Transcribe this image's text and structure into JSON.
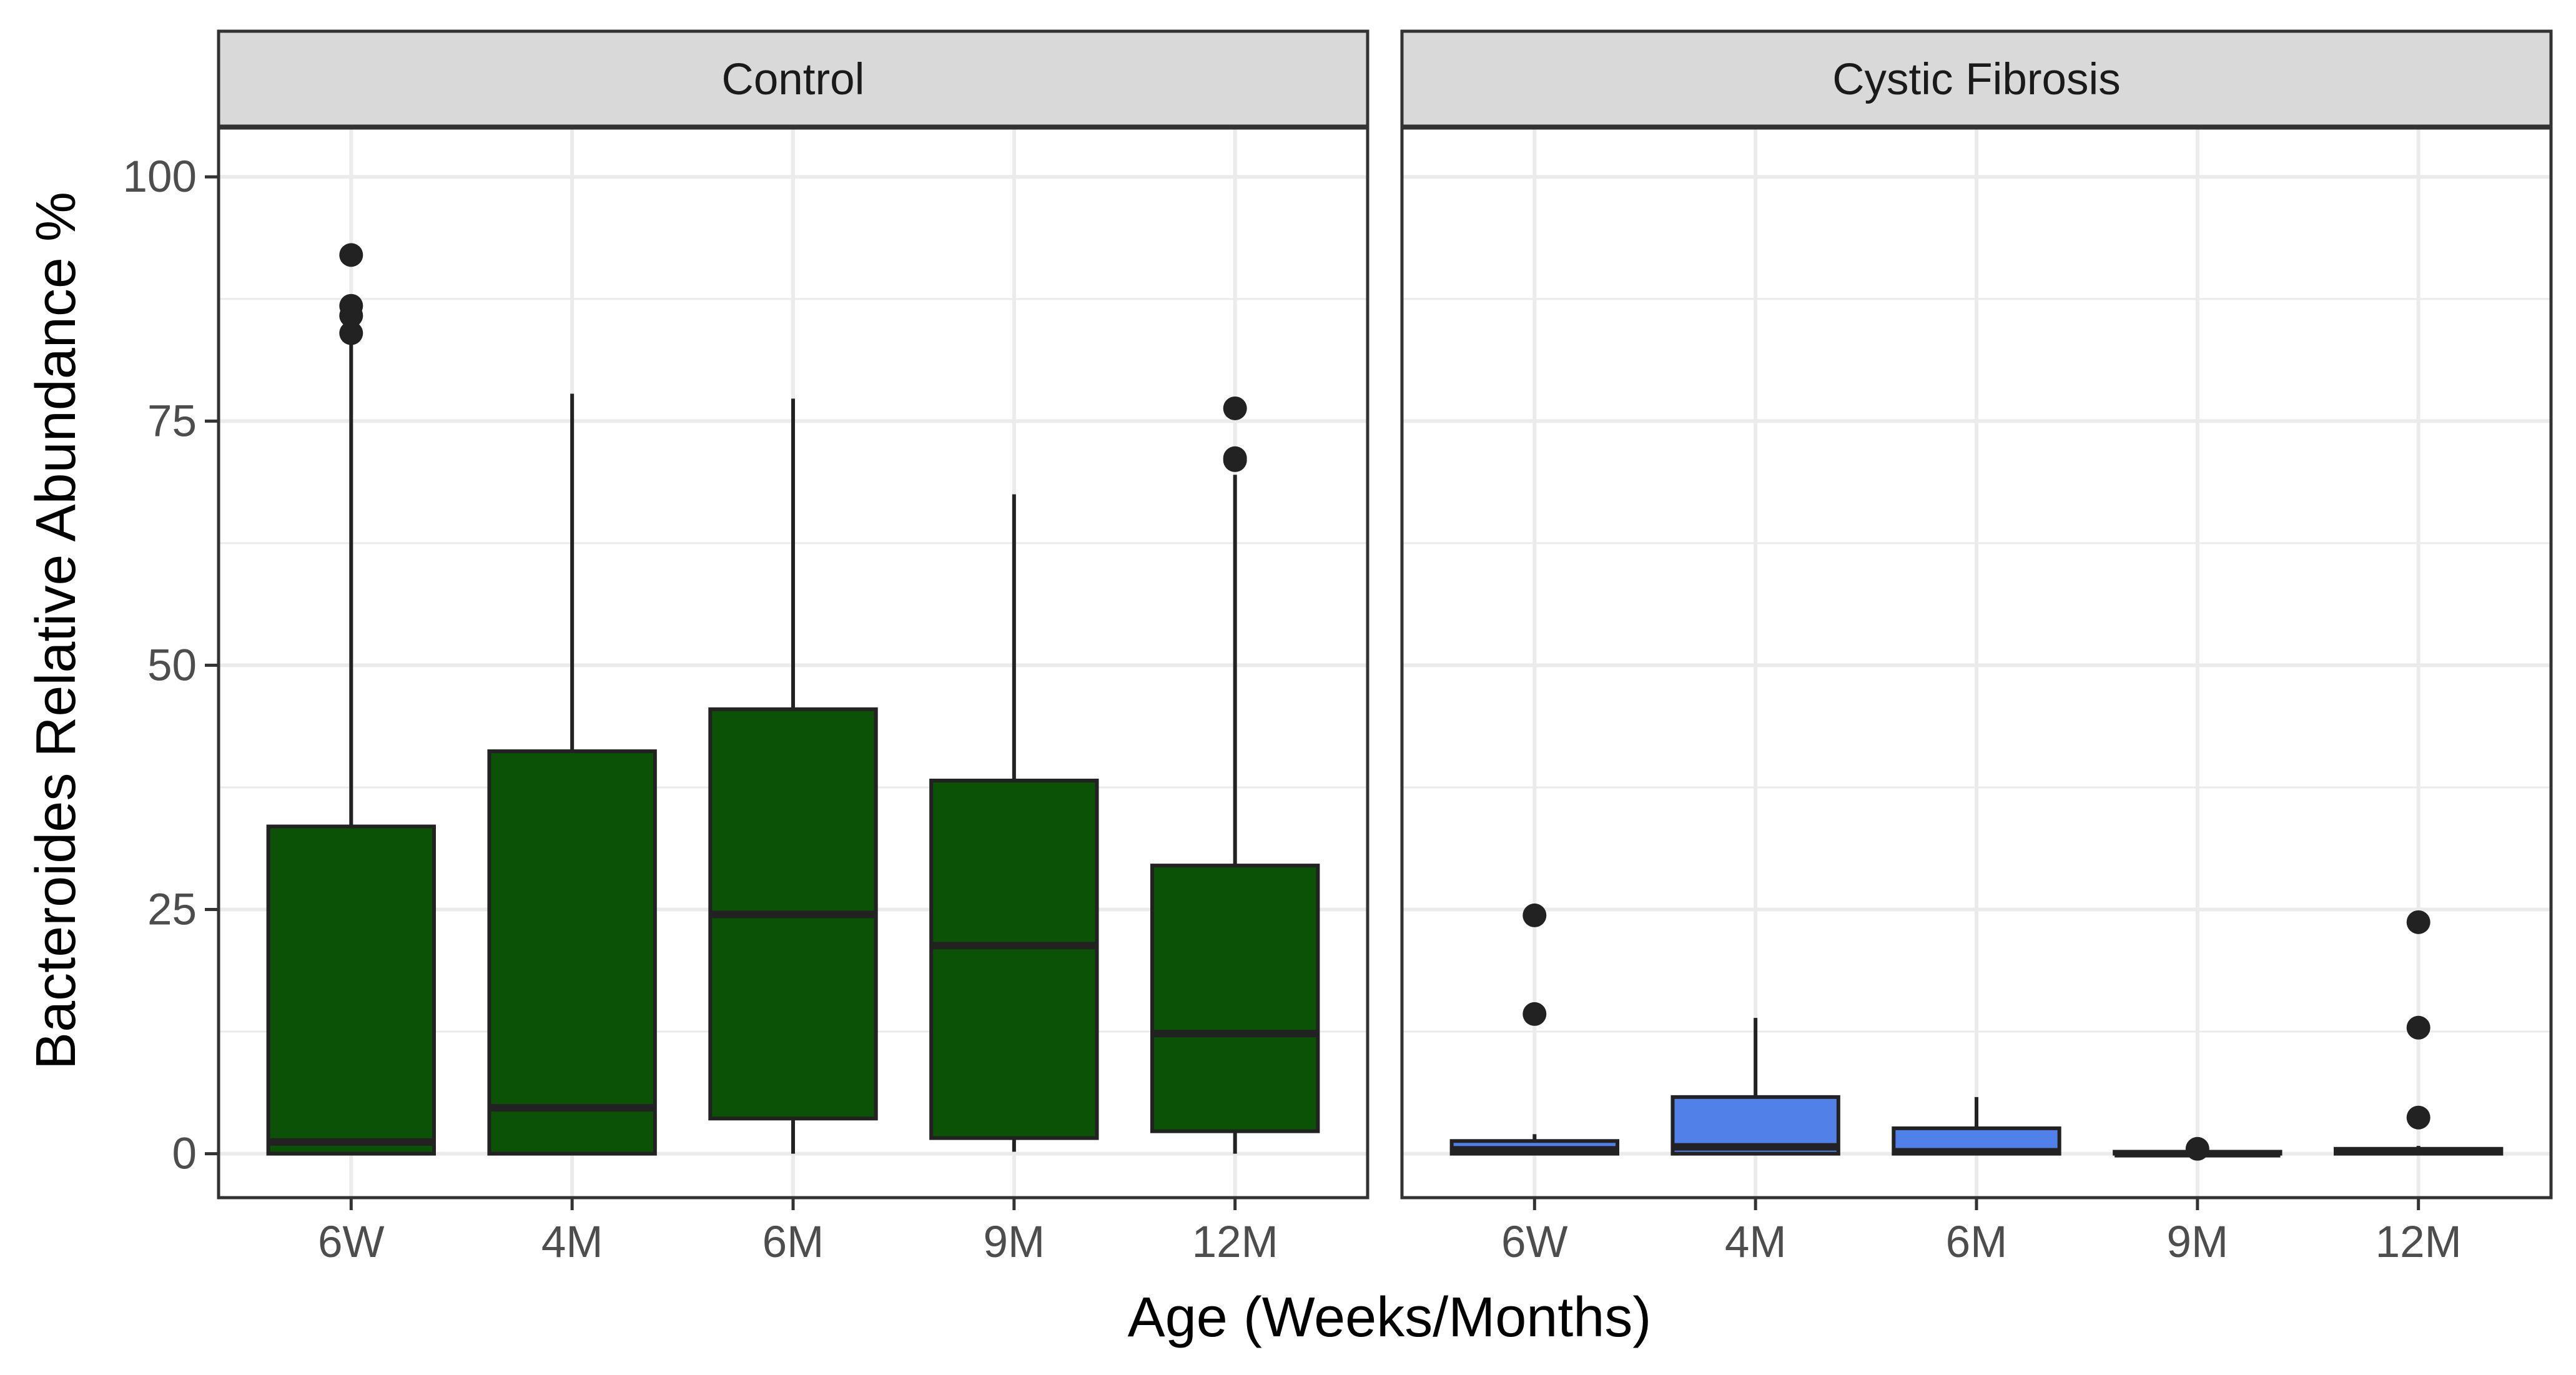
{
  "chart_data": {
    "type": "boxplot",
    "xlabel": "Age (Weeks/Months)",
    "ylabel": "Bacteroides Relative Abundance %",
    "ylim": [
      -4.5,
      105
    ],
    "yticks": [
      0,
      25,
      50,
      75,
      100
    ],
    "grid": true,
    "categories": [
      "6W",
      "4M",
      "6M",
      "9M",
      "12M"
    ],
    "panels": [
      {
        "name": "Control",
        "fill": "#0b5206",
        "boxes": [
          {
            "category": "6W",
            "lower_whisker": 0,
            "q1": 0,
            "median": 1.2,
            "q3": 33.5,
            "upper_whisker": 84,
            "outliers": [
              84,
              85.8,
              86.8,
              92
            ]
          },
          {
            "category": "4M",
            "lower_whisker": 0,
            "q1": 0,
            "median": 4.7,
            "q3": 41.2,
            "upper_whisker": 77.8,
            "outliers": []
          },
          {
            "category": "6M",
            "lower_whisker": 0,
            "q1": 3.6,
            "median": 24.5,
            "q3": 45.5,
            "upper_whisker": 77.3,
            "outliers": []
          },
          {
            "category": "9M",
            "lower_whisker": 0.2,
            "q1": 1.6,
            "median": 21.3,
            "q3": 38.2,
            "upper_whisker": 67.5,
            "outliers": []
          },
          {
            "category": "12M",
            "lower_whisker": 0,
            "q1": 2.3,
            "median": 12.3,
            "q3": 29.5,
            "upper_whisker": 69.5,
            "outliers": [
              71,
              71.2,
              76.3
            ]
          }
        ]
      },
      {
        "name": "Cystic Fibrosis",
        "fill": "#5080e8",
        "boxes": [
          {
            "category": "6W",
            "lower_whisker": 0,
            "q1": 0,
            "median": 0.4,
            "q3": 1.3,
            "upper_whisker": 2,
            "outliers": [
              14.3,
              24.4
            ]
          },
          {
            "category": "4M",
            "lower_whisker": 0,
            "q1": 0,
            "median": 0.7,
            "q3": 5.8,
            "upper_whisker": 13.9,
            "outliers": []
          },
          {
            "category": "6M",
            "lower_whisker": 0,
            "q1": 0,
            "median": 0.2,
            "q3": 2.6,
            "upper_whisker": 5.8,
            "outliers": []
          },
          {
            "category": "9M",
            "lower_whisker": 0,
            "q1": 0,
            "median": 0,
            "q3": 0.2,
            "upper_whisker": 0.3,
            "outliers": [
              0.5
            ]
          },
          {
            "category": "12M",
            "lower_whisker": 0,
            "q1": 0,
            "median": 0.2,
            "q3": 0.5,
            "upper_whisker": 0.8,
            "outliers": [
              3.7,
              12.9,
              23.7
            ]
          }
        ]
      }
    ]
  }
}
